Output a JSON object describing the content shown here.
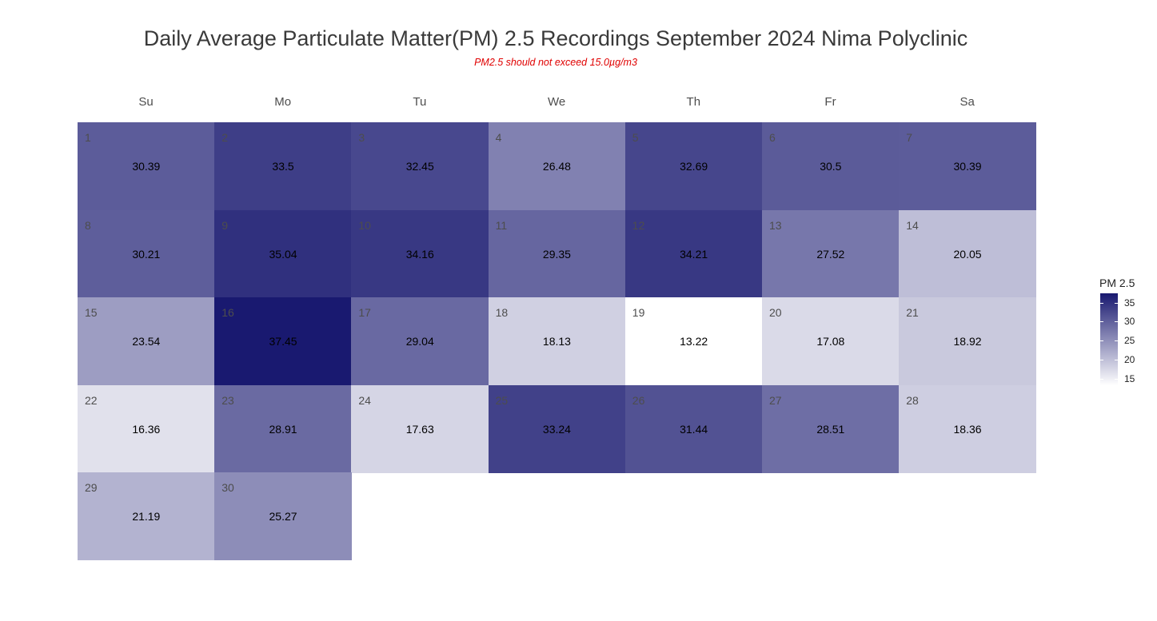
{
  "chart_data": {
    "type": "heatmap",
    "title": "Daily Average Particulate Matter(PM) 2.5 Recordings September 2024 Nima Polyclinic",
    "subtitle": "PM2.5 should not exceed 15.0µg/m3",
    "weekdays": [
      "Su",
      "Mo",
      "Tu",
      "We",
      "Th",
      "Fr",
      "Sa"
    ],
    "first_weekday_index": 0,
    "days": [
      1,
      2,
      3,
      4,
      5,
      6,
      7,
      8,
      9,
      10,
      11,
      12,
      13,
      14,
      15,
      16,
      17,
      18,
      19,
      20,
      21,
      22,
      23,
      24,
      25,
      26,
      27,
      28,
      29,
      30
    ],
    "values": [
      "30.39",
      "33.5",
      "32.45",
      "26.48",
      "32.69",
      "30.5",
      "30.39",
      "30.21",
      "35.04",
      "34.16",
      "29.35",
      "34.21",
      "27.52",
      "20.05",
      "23.54",
      "37.45",
      "29.04",
      "18.13",
      "13.22",
      "17.08",
      "18.92",
      "16.36",
      "28.91",
      "17.63",
      "33.24",
      "31.44",
      "28.51",
      "18.36",
      "21.19",
      "25.27"
    ],
    "legend": {
      "title": "PM 2.5",
      "ticks": [
        15,
        20,
        25,
        30,
        35
      ],
      "range": [
        13.22,
        37.45
      ]
    },
    "colors": {
      "low": "#ffffff",
      "high": "#191970"
    }
  }
}
